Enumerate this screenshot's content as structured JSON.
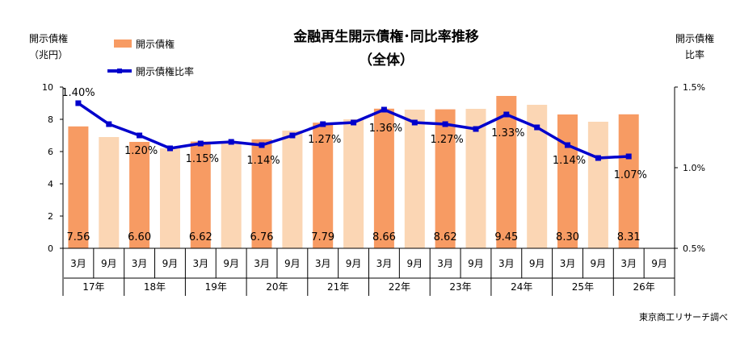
{
  "chart_data": {
    "type": "bar",
    "title": "金融再生開示債権･同比率推移",
    "subtitle": "（全体）",
    "left_axis_label": [
      "開示債権",
      "（兆円）"
    ],
    "right_axis_label": [
      "開示債権",
      "比率"
    ],
    "legend": {
      "bar_label": "開示債権",
      "line_label": "開示債権比率"
    },
    "y_left": {
      "min": 0,
      "max": 10,
      "ticks": [
        "0",
        "2",
        "4",
        "6",
        "8",
        "10"
      ]
    },
    "y_right": {
      "min": 0.5,
      "max": 1.5,
      "ticks": [
        "0.5%",
        "1.0%",
        "1.5%"
      ]
    },
    "categories": [
      "3月",
      "9月",
      "3月",
      "9月",
      "3月",
      "9月",
      "3月",
      "9月",
      "3月",
      "9月",
      "3月",
      "9月",
      "3月",
      "9月",
      "3月",
      "9月",
      "3月",
      "9月",
      "3月",
      "9月"
    ],
    "years": [
      "17年",
      "18年",
      "19年",
      "20年",
      "21年",
      "22年",
      "23年",
      "24年",
      "25年",
      "26年"
    ],
    "bars": [
      7.56,
      6.9,
      6.6,
      6.2,
      6.62,
      6.5,
      6.76,
      7.3,
      7.79,
      8.0,
      8.66,
      8.6,
      8.62,
      8.65,
      9.45,
      8.9,
      8.3,
      7.85,
      8.31,
      null
    ],
    "bar_labels": [
      "7.56",
      "",
      "6.60",
      "",
      "6.62",
      "",
      "6.76",
      "",
      "7.79",
      "",
      "8.66",
      "",
      "8.62",
      "",
      "9.45",
      "",
      "8.30",
      "",
      "8.31",
      ""
    ],
    "ratio": [
      1.4,
      1.27,
      1.2,
      1.12,
      1.15,
      1.16,
      1.14,
      1.2,
      1.27,
      1.28,
      1.36,
      1.28,
      1.27,
      1.24,
      1.33,
      1.25,
      1.14,
      1.06,
      1.07,
      null
    ],
    "ratio_labels": [
      "1.40%",
      "",
      "1.20%",
      "",
      "1.15%",
      "",
      "1.14%",
      "",
      "1.27%",
      "",
      "1.36%",
      "",
      "1.27%",
      "",
      "1.33%",
      "",
      "1.14%",
      "",
      "1.07%",
      ""
    ],
    "colors": {
      "bar_march": "#F79B63",
      "bar_september": "#FBD6B4",
      "line": "#0000CC"
    },
    "source": "東京商工リサーチ調べ"
  }
}
